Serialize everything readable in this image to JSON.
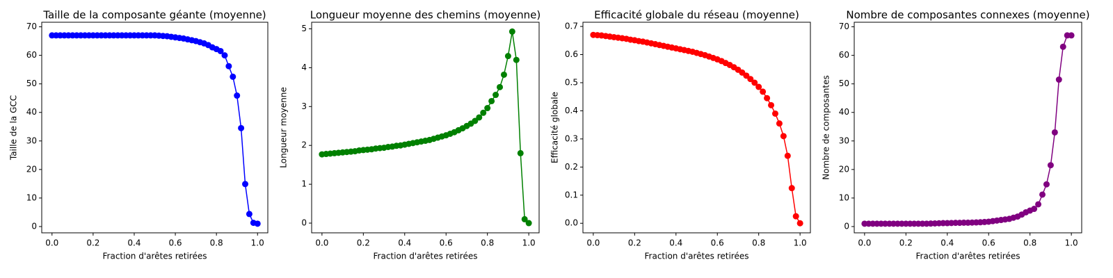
{
  "chart_data": [
    {
      "type": "line",
      "title": "Taille de la composante géante (moyenne)",
      "xlabel": "Fraction d'arêtes retirées",
      "ylabel": "Taille de la GCC",
      "color": "#0000ff",
      "x": [
        0,
        0.02,
        0.04,
        0.06,
        0.08,
        0.1,
        0.12,
        0.14,
        0.16,
        0.18,
        0.2,
        0.22,
        0.24,
        0.26,
        0.28,
        0.3,
        0.32,
        0.34,
        0.36,
        0.38,
        0.4,
        0.42,
        0.44,
        0.46,
        0.48,
        0.5,
        0.52,
        0.54,
        0.56,
        0.58,
        0.6,
        0.62,
        0.64,
        0.66,
        0.68,
        0.7,
        0.72,
        0.74,
        0.76,
        0.78,
        0.8,
        0.82,
        0.84,
        0.86,
        0.88,
        0.9,
        0.92,
        0.94,
        0.96,
        0.98,
        1
      ],
      "values": [
        67,
        67,
        67,
        67,
        67,
        67,
        67,
        67,
        67,
        67,
        67,
        67,
        67,
        67,
        67,
        67,
        67,
        67,
        67,
        67,
        67,
        67,
        67,
        67,
        67,
        67,
        66.9,
        66.8,
        66.7,
        66.5,
        66.3,
        66.1,
        65.9,
        65.6,
        65.3,
        65.0,
        64.6,
        64.2,
        63.6,
        62.8,
        62.2,
        61.5,
        60.0,
        56.2,
        52.5,
        45.9,
        34.5,
        14.9,
        4.4,
        1.3,
        1.0
      ],
      "xlim": [
        -0.05,
        1.05
      ],
      "ylim": [
        -2.2,
        71.6
      ],
      "xticks": [
        {
          "value": 0,
          "label": "0.0"
        },
        0.2,
        0.4,
        0.6,
        0.8,
        {
          "value": 1,
          "label": "1.0"
        }
      ],
      "yticks": [
        0,
        10,
        20,
        30,
        40,
        50,
        60,
        70
      ]
    },
    {
      "type": "line",
      "title": "Longueur moyenne des chemins (moyenne)",
      "xlabel": "Fraction d'arêtes retirées",
      "ylabel": "Longueur moyenne",
      "color": "#008000",
      "x": [
        0,
        0.02,
        0.04,
        0.06,
        0.08,
        0.1,
        0.12,
        0.14,
        0.16,
        0.18,
        0.2,
        0.22,
        0.24,
        0.26,
        0.28,
        0.3,
        0.32,
        0.34,
        0.36,
        0.38,
        0.4,
        0.42,
        0.44,
        0.46,
        0.48,
        0.5,
        0.52,
        0.54,
        0.56,
        0.58,
        0.6,
        0.62,
        0.64,
        0.66,
        0.68,
        0.7,
        0.72,
        0.74,
        0.76,
        0.78,
        0.8,
        0.82,
        0.84,
        0.86,
        0.88,
        0.9,
        0.92,
        0.94,
        0.96,
        0.98,
        1
      ],
      "values": [
        1.77,
        1.78,
        1.79,
        1.8,
        1.81,
        1.82,
        1.83,
        1.84,
        1.85,
        1.87,
        1.88,
        1.89,
        1.9,
        1.92,
        1.93,
        1.94,
        1.96,
        1.97,
        1.99,
        2.0,
        2.02,
        2.04,
        2.06,
        2.08,
        2.1,
        2.12,
        2.14,
        2.17,
        2.2,
        2.23,
        2.26,
        2.3,
        2.34,
        2.39,
        2.44,
        2.5,
        2.56,
        2.63,
        2.72,
        2.84,
        2.96,
        3.14,
        3.3,
        3.5,
        3.82,
        4.3,
        4.93,
        4.2,
        1.8,
        0.1,
        0
      ],
      "xlim": [
        -0.05,
        1.05
      ],
      "ylim": [
        -0.25,
        5.17
      ],
      "xticks": [
        {
          "value": 0,
          "label": "0.0"
        },
        0.2,
        0.4,
        0.6,
        0.8,
        {
          "value": 1,
          "label": "1.0"
        }
      ],
      "yticks": [
        0,
        1,
        2,
        3,
        4,
        5
      ]
    },
    {
      "type": "line",
      "title": "Efficacité globale du réseau (moyenne)",
      "xlabel": "Fraction d'arêtes retirées",
      "ylabel": "Efficacité globale",
      "color": "#ff0000",
      "x": [
        0,
        0.02,
        0.04,
        0.06,
        0.08,
        0.1,
        0.12,
        0.14,
        0.16,
        0.18,
        0.2,
        0.22,
        0.24,
        0.26,
        0.28,
        0.3,
        0.32,
        0.34,
        0.36,
        0.38,
        0.4,
        0.42,
        0.44,
        0.46,
        0.48,
        0.5,
        0.52,
        0.54,
        0.56,
        0.58,
        0.6,
        0.62,
        0.64,
        0.66,
        0.68,
        0.7,
        0.72,
        0.74,
        0.76,
        0.78,
        0.8,
        0.82,
        0.84,
        0.86,
        0.88,
        0.9,
        0.92,
        0.94,
        0.96,
        0.98,
        1
      ],
      "values": [
        0.67,
        0.669,
        0.668,
        0.666,
        0.664,
        0.662,
        0.66,
        0.658,
        0.656,
        0.653,
        0.651,
        0.648,
        0.646,
        0.643,
        0.64,
        0.637,
        0.634,
        0.631,
        0.628,
        0.625,
        0.622,
        0.619,
        0.616,
        0.613,
        0.61,
        0.606,
        0.602,
        0.598,
        0.593,
        0.588,
        0.583,
        0.577,
        0.57,
        0.563,
        0.555,
        0.546,
        0.536,
        0.525,
        0.513,
        0.5,
        0.485,
        0.468,
        0.445,
        0.42,
        0.39,
        0.355,
        0.31,
        0.24,
        0.125,
        0.025,
        0
      ],
      "xlim": [
        -0.05,
        1.05
      ],
      "ylim": [
        -0.034,
        0.715
      ],
      "xticks": [
        {
          "value": 0,
          "label": "0.0"
        },
        0.2,
        0.4,
        0.6,
        0.8,
        {
          "value": 1,
          "label": "1.0"
        }
      ],
      "yticks": [
        {
          "value": 0,
          "label": "0.0"
        },
        0.1,
        0.2,
        0.3,
        0.4,
        0.5,
        0.6,
        0.7
      ]
    },
    {
      "type": "line",
      "title": "Nombre de composantes connexes (moyenne)",
      "xlabel": "Fraction d'arêtes retirées",
      "ylabel": "Nombre de composantes",
      "color": "#800080",
      "x": [
        0,
        0.02,
        0.04,
        0.06,
        0.08,
        0.1,
        0.12,
        0.14,
        0.16,
        0.18,
        0.2,
        0.22,
        0.24,
        0.26,
        0.28,
        0.3,
        0.32,
        0.34,
        0.36,
        0.38,
        0.4,
        0.42,
        0.44,
        0.46,
        0.48,
        0.5,
        0.52,
        0.54,
        0.56,
        0.58,
        0.6,
        0.62,
        0.64,
        0.66,
        0.68,
        0.7,
        0.72,
        0.74,
        0.76,
        0.78,
        0.8,
        0.82,
        0.84,
        0.86,
        0.88,
        0.9,
        0.92,
        0.94,
        0.96,
        0.98,
        1
      ],
      "values": [
        1,
        1,
        1,
        1,
        1,
        1,
        1,
        1,
        1,
        1,
        1,
        1,
        1,
        1,
        1,
        1,
        1.05,
        1.1,
        1.15,
        1.2,
        1.2,
        1.25,
        1.3,
        1.3,
        1.35,
        1.35,
        1.4,
        1.45,
        1.5,
        1.6,
        1.7,
        1.9,
        2.1,
        2.3,
        2.5,
        2.7,
        3.1,
        3.5,
        4.2,
        5.0,
        5.6,
        6.2,
        7.8,
        11.2,
        14.8,
        21.5,
        33.0,
        51.5,
        63.0,
        67.0,
        67.0
      ],
      "xlim": [
        -0.05,
        1.05
      ],
      "ylim": [
        -2.2,
        71.6
      ],
      "xticks": [
        {
          "value": 0,
          "label": "0.0"
        },
        0.2,
        0.4,
        0.6,
        0.8,
        {
          "value": 1,
          "label": "1.0"
        }
      ],
      "yticks": [
        0,
        10,
        20,
        30,
        40,
        50,
        60,
        70
      ]
    }
  ]
}
